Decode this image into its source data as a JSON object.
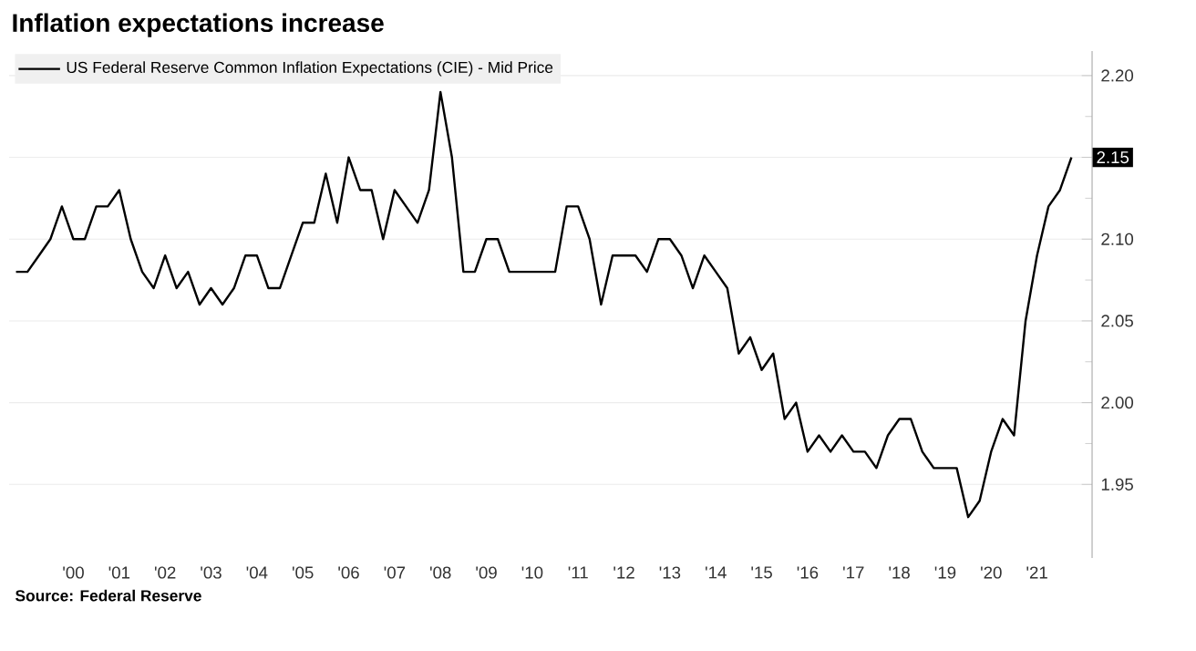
{
  "chart_data": {
    "type": "line",
    "title": "Inflation expectations increase",
    "annotations": [
      "Source: Federal Reserve"
    ],
    "x": [
      1998.75,
      1999,
      1999.25,
      1999.5,
      1999.75,
      2000,
      2000.25,
      2000.5,
      2000.75,
      2001,
      2001.25,
      2001.5,
      2001.75,
      2002,
      2002.25,
      2002.5,
      2002.75,
      2003,
      2003.25,
      2003.5,
      2003.75,
      2004,
      2004.25,
      2004.5,
      2004.75,
      2005,
      2005.25,
      2005.5,
      2005.75,
      2006,
      2006.25,
      2006.5,
      2006.75,
      2007,
      2007.25,
      2007.5,
      2007.75,
      2008,
      2008.25,
      2008.5,
      2008.75,
      2009,
      2009.25,
      2009.5,
      2009.75,
      2010,
      2010.25,
      2010.5,
      2010.75,
      2011,
      2011.25,
      2011.5,
      2011.75,
      2012,
      2012.25,
      2012.5,
      2012.75,
      2013,
      2013.25,
      2013.5,
      2013.75,
      2014,
      2014.25,
      2014.5,
      2014.75,
      2015,
      2015.25,
      2015.5,
      2015.75,
      2016,
      2016.25,
      2016.5,
      2016.75,
      2017,
      2017.25,
      2017.5,
      2017.75,
      2018,
      2018.25,
      2018.5,
      2018.75,
      2019,
      2019.25,
      2019.5,
      2019.75,
      2020,
      2020.25,
      2020.5,
      2020.75,
      2021,
      2021.25,
      2021.5,
      2021.75
    ],
    "series": [
      {
        "name": "US Federal Reserve Common Inflation Expectations (CIE) - Mid Price",
        "color": "#000000",
        "values": [
          2.08,
          2.08,
          2.09,
          2.1,
          2.12,
          2.1,
          2.1,
          2.12,
          2.12,
          2.13,
          2.1,
          2.08,
          2.07,
          2.09,
          2.07,
          2.08,
          2.06,
          2.07,
          2.06,
          2.07,
          2.09,
          2.09,
          2.07,
          2.07,
          2.09,
          2.11,
          2.11,
          2.14,
          2.11,
          2.15,
          2.13,
          2.13,
          2.1,
          2.13,
          2.12,
          2.11,
          2.13,
          2.19,
          2.15,
          2.08,
          2.08,
          2.1,
          2.1,
          2.08,
          2.08,
          2.08,
          2.08,
          2.08,
          2.12,
          2.12,
          2.1,
          2.06,
          2.09,
          2.09,
          2.09,
          2.08,
          2.1,
          2.1,
          2.09,
          2.07,
          2.09,
          2.08,
          2.07,
          2.03,
          2.04,
          2.02,
          2.03,
          1.99,
          2.0,
          1.97,
          1.98,
          1.97,
          1.98,
          1.97,
          1.97,
          1.96,
          1.98,
          1.99,
          1.99,
          1.97,
          1.96,
          1.96,
          1.96,
          1.93,
          1.94,
          1.97,
          1.99,
          1.98,
          2.05,
          2.09,
          2.12,
          2.13,
          2.15
        ],
        "value_labels": [
          null,
          null,
          null,
          null,
          null,
          null,
          null,
          null,
          null,
          null,
          null,
          null,
          null,
          null,
          null,
          null,
          null,
          null,
          null,
          null,
          null,
          null,
          null,
          null,
          null,
          null,
          null,
          null,
          null,
          null,
          null,
          null,
          null,
          null,
          null,
          null,
          null,
          null,
          null,
          null,
          null,
          null,
          null,
          null,
          null,
          null,
          null,
          null,
          null,
          null,
          null,
          null,
          null,
          null,
          null,
          null,
          null,
          null,
          null,
          null,
          null,
          null,
          null,
          null,
          null,
          null,
          null,
          null,
          null,
          null,
          null,
          null,
          null,
          null,
          null,
          null,
          null,
          null,
          null,
          null,
          null,
          null,
          null,
          null,
          null,
          null,
          null,
          null,
          null,
          null,
          null,
          null,
          "2.15"
        ]
      }
    ],
    "xlim": [
      1998.6,
      2022.2
    ],
    "ylim": [
      1.905,
      2.215
    ],
    "xticks": [
      {
        "value": 2000,
        "label": "'00"
      },
      {
        "value": 2001,
        "label": "'01"
      },
      {
        "value": 2002,
        "label": "'02"
      },
      {
        "value": 2003,
        "label": "'03"
      },
      {
        "value": 2004,
        "label": "'04"
      },
      {
        "value": 2005,
        "label": "'05"
      },
      {
        "value": 2006,
        "label": "'06"
      },
      {
        "value": 2007,
        "label": "'07"
      },
      {
        "value": 2008,
        "label": "'08"
      },
      {
        "value": 2009,
        "label": "'09"
      },
      {
        "value": 2010,
        "label": "'10"
      },
      {
        "value": 2011,
        "label": "'11"
      },
      {
        "value": 2012,
        "label": "'12"
      },
      {
        "value": 2013,
        "label": "'13"
      },
      {
        "value": 2014,
        "label": "'14"
      },
      {
        "value": 2015,
        "label": "'15"
      },
      {
        "value": 2016,
        "label": "'16"
      },
      {
        "value": 2017,
        "label": "'17"
      },
      {
        "value": 2018,
        "label": "'18"
      },
      {
        "value": 2019,
        "label": "'19"
      },
      {
        "value": 2020,
        "label": "'20"
      },
      {
        "value": 2021,
        "label": "'21"
      }
    ],
    "yticks": [
      {
        "value": 1.95,
        "label": "1.95"
      },
      {
        "value": 2.0,
        "label": "2.00"
      },
      {
        "value": 2.05,
        "label": "2.05"
      },
      {
        "value": 2.1,
        "label": "2.10"
      },
      {
        "value": 2.15,
        "label": null
      },
      {
        "value": 2.2,
        "label": "2.20"
      }
    ],
    "grid": "y",
    "legend": "top left",
    "marker": "none",
    "line_style": "solid"
  }
}
